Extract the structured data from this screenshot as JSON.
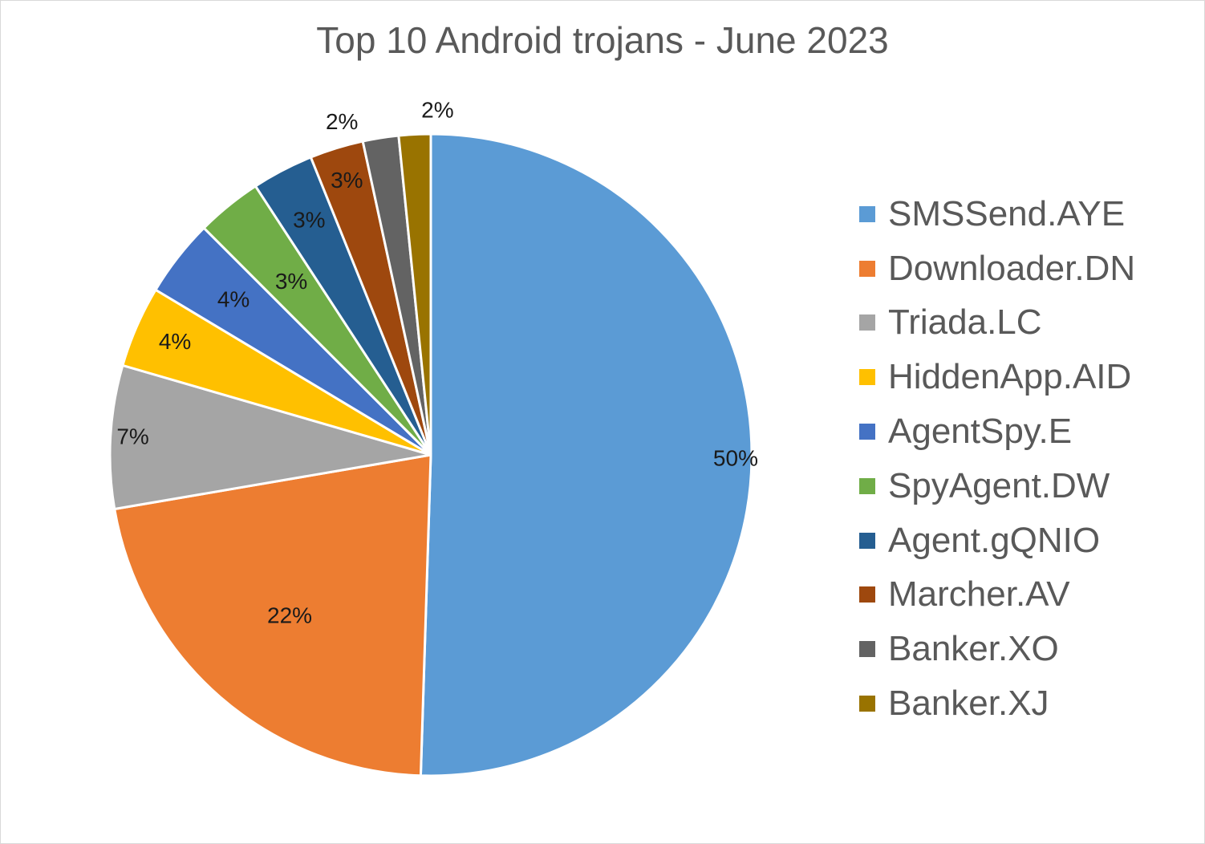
{
  "chart_data": {
    "type": "pie",
    "title": "Top 10 Android trojans - June 2023",
    "categories": [
      "SMSSend.AYE",
      "Downloader.DN",
      "Triada.LC",
      "HiddenApp.AID",
      "AgentSpy.E",
      "SpyAgent.DW",
      "Agent.gQNIO",
      "Marcher.AV",
      "Banker.XO",
      "Banker.XJ"
    ],
    "values": [
      50.5,
      21.8,
      7.2,
      4.1,
      3.9,
      3.3,
      3.1,
      2.7,
      1.8,
      1.6
    ],
    "data_labels": [
      "50%",
      "22%",
      "7%",
      "4%",
      "4%",
      "3%",
      "3%",
      "3%",
      "2%",
      "2%"
    ],
    "colors": [
      "#5b9bd5",
      "#ed7d31",
      "#a5a5a5",
      "#ffc000",
      "#4472c4",
      "#70ad47",
      "#255e91",
      "#9e480e",
      "#636363",
      "#997300"
    ],
    "legend_position": "right"
  }
}
